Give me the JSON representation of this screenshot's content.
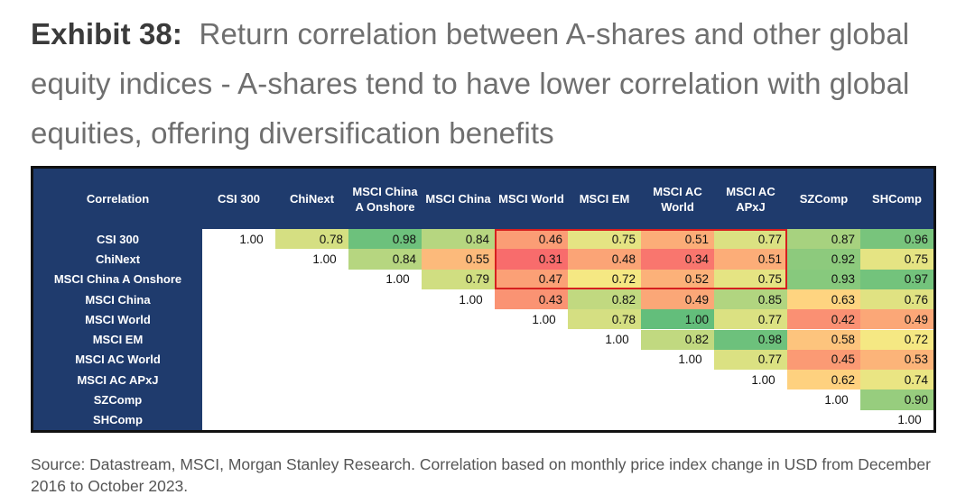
{
  "title": {
    "label": "Exhibit 38:",
    "text": "Return correlation between A-shares and other global equity indices - A-shares tend to have lower correlation with global equities, offering diversification benefits"
  },
  "chart_data": {
    "type": "table",
    "corner_label": "Correlation",
    "columns": [
      "CSI 300",
      "ChiNext",
      "MSCI China A Onshore",
      "MSCI China",
      "MSCI World",
      "MSCI EM",
      "MSCI AC World",
      "MSCI AC APxJ",
      "SZComp",
      "SHComp"
    ],
    "rows": [
      "CSI 300",
      "ChiNext",
      "MSCI China A Onshore",
      "MSCI China",
      "MSCI World",
      "MSCI EM",
      "MSCI AC World",
      "MSCI AC APxJ",
      "SZComp",
      "SHComp"
    ],
    "values": [
      [
        "1.00",
        "0.78",
        "0.98",
        "0.84",
        "0.46",
        "0.75",
        "0.51",
        "0.77",
        "0.87",
        "0.96"
      ],
      [
        "",
        "1.00",
        "0.84",
        "0.55",
        "0.31",
        "0.48",
        "0.34",
        "0.51",
        "0.92",
        "0.75"
      ],
      [
        "",
        "",
        "1.00",
        "0.79",
        "0.47",
        "0.72",
        "0.52",
        "0.75",
        "0.93",
        "0.97"
      ],
      [
        "",
        "",
        "",
        "1.00",
        "0.43",
        "0.82",
        "0.49",
        "0.85",
        "0.63",
        "0.76"
      ],
      [
        "",
        "",
        "",
        "",
        "1.00",
        "0.78",
        "1.00",
        "0.77",
        "0.42",
        "0.49"
      ],
      [
        "",
        "",
        "",
        "",
        "",
        "1.00",
        "0.82",
        "0.98",
        "0.58",
        "0.72"
      ],
      [
        "",
        "",
        "",
        "",
        "",
        "",
        "1.00",
        "0.77",
        "0.45",
        "0.53"
      ],
      [
        "",
        "",
        "",
        "",
        "",
        "",
        "",
        "1.00",
        "0.62",
        "0.74"
      ],
      [
        "",
        "",
        "",
        "",
        "",
        "",
        "",
        "",
        "1.00",
        "0.90"
      ],
      [
        "",
        "",
        "",
        "",
        "",
        "",
        "",
        "",
        "",
        "1.00"
      ]
    ],
    "color_scale": {
      "low": "#f8696b",
      "mid": "#ffeb84",
      "high": "#63be7b",
      "min": 0.3,
      "mid_value": 0.7,
      "max": 1.0
    },
    "highlight": {
      "rows": [
        0,
        2
      ],
      "cols": [
        4,
        7
      ],
      "color": "#d61f1f"
    }
  },
  "source": "Source: Datastream, MSCI, Morgan Stanley Research. Correlation based on monthly price index change in USD from December 2016 to October 2023."
}
